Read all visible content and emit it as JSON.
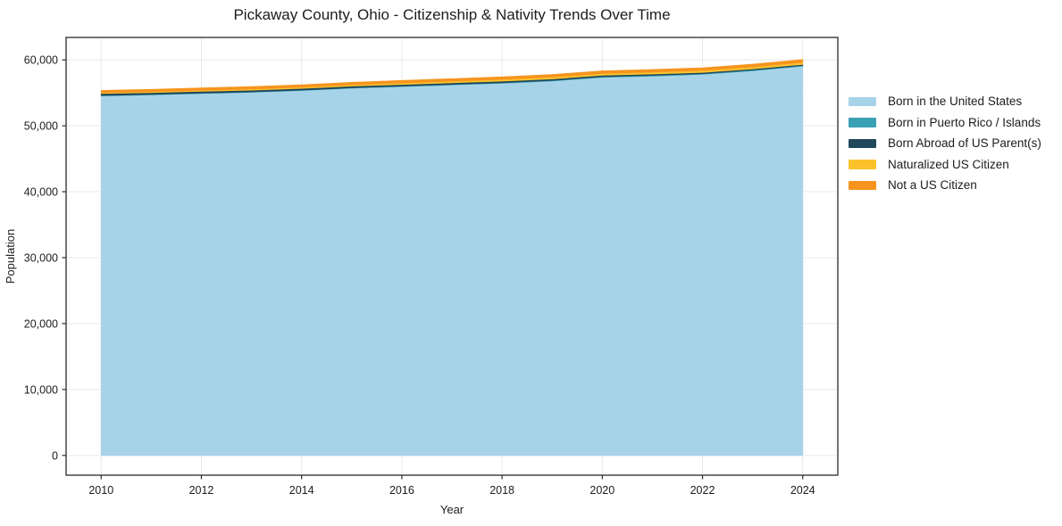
{
  "title": "Pickaway County, Ohio - Citizenship & Nativity Trends Over Time",
  "chart_data": {
    "type": "area",
    "stacked": true,
    "title": "Pickaway County, Ohio - Citizenship & Nativity Trends Over Time",
    "xlabel": "Year",
    "ylabel": "Population",
    "x": [
      2010,
      2011,
      2012,
      2013,
      2014,
      2015,
      2016,
      2017,
      2018,
      2019,
      2020,
      2021,
      2022,
      2023,
      2024
    ],
    "series": [
      {
        "id": "born-us",
        "name": "Born in the United States",
        "color": "#a7d3e8",
        "values": [
          54540,
          54700,
          54900,
          55080,
          55350,
          55700,
          55950,
          56200,
          56450,
          56800,
          57350,
          57550,
          57800,
          58350,
          59050
        ]
      },
      {
        "id": "born-pr",
        "name": "Born in Puerto Rico / Islands",
        "color": "#3aa0b6",
        "values": [
          60,
          62,
          65,
          68,
          70,
          75,
          80,
          85,
          90,
          95,
          100,
          102,
          105,
          108,
          110
        ]
      },
      {
        "id": "born-abroad",
        "name": "Born Abroad of US Parent(s)",
        "color": "#21475a",
        "values": [
          290,
          280,
          270,
          262,
          255,
          250,
          245,
          240,
          230,
          220,
          210,
          200,
          190,
          175,
          160
        ]
      },
      {
        "id": "naturalized",
        "name": "Naturalized US Citizen",
        "color": "#fcc22d",
        "values": [
          130,
          145,
          160,
          175,
          190,
          210,
          230,
          250,
          270,
          285,
          295,
          300,
          305,
          308,
          310
        ]
      },
      {
        "id": "not-citizen",
        "name": "Not a US Citizen",
        "color": "#f7941e",
        "values": [
          330,
          335,
          340,
          345,
          350,
          355,
          360,
          365,
          370,
          375,
          380,
          385,
          390,
          400,
          420
        ]
      }
    ],
    "x_ticks": [
      2010,
      2012,
      2014,
      2016,
      2018,
      2020,
      2022,
      2024
    ],
    "y_ticks": [
      0,
      10000,
      20000,
      30000,
      40000,
      50000,
      60000
    ],
    "y_tick_labels": [
      "0",
      "10,000",
      "20,000",
      "30,000",
      "40,000",
      "50,000",
      "60,000"
    ],
    "xlim": [
      2009.3,
      2024.7
    ],
    "ylim": [
      -3000,
      63400
    ],
    "grid": true,
    "legend_position": "right",
    "colors": {
      "grid": "#e9e9e9",
      "frame": "#2a2a2a",
      "text": "#1c1c1c",
      "background": "#ffffff"
    }
  }
}
